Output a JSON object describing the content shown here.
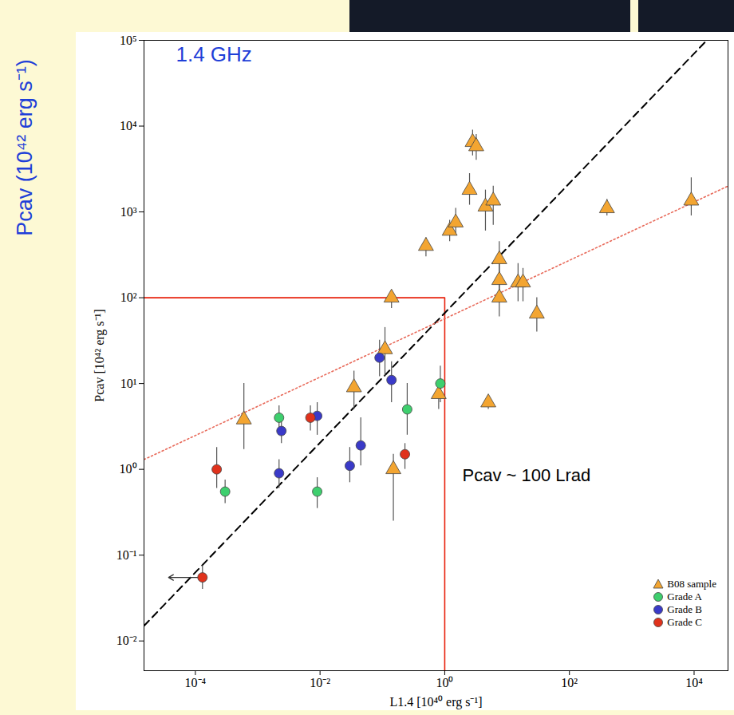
{
  "chart_data": {
    "type": "scatter",
    "log": true,
    "grid": false,
    "legend": "lower right",
    "xlabel": "L1.4 [10⁴⁰ erg s⁻¹]",
    "ylabel": "Pcav [10⁴² erg s⁻¹]",
    "annotations": [
      {
        "text": "1.4 GHz",
        "color": "#1f3fd8"
      },
      {
        "text": "Pcav ~ 100 Lrad",
        "color": "#000000"
      },
      {
        "text": "Pcav (10⁴² erg s⁻¹)",
        "color": "#1f3fd8"
      }
    ],
    "xlim": [
      1.5e-05,
      35000
    ],
    "ylim": [
      0.0045,
      100000
    ],
    "xticks": [
      {
        "value": 0.0001,
        "label": "10⁻⁴"
      },
      {
        "value": 0.01,
        "label": "10⁻²"
      },
      {
        "value": 1,
        "label": "10⁰"
      },
      {
        "value": 100,
        "label": "10²"
      },
      {
        "value": 10000,
        "label": "10⁴"
      }
    ],
    "yticks": [
      {
        "value": 0.01,
        "label": "10⁻²"
      },
      {
        "value": 0.1,
        "label": "10⁻¹"
      },
      {
        "value": 1,
        "label": "10⁰"
      },
      {
        "value": 10,
        "label": "10¹"
      },
      {
        "value": 100,
        "label": "10²"
      },
      {
        "value": 1000,
        "label": "10³"
      },
      {
        "value": 10000,
        "label": "10⁴"
      },
      {
        "value": 100000,
        "label": "10⁵"
      }
    ],
    "series": [
      {
        "type": "line",
        "color": "#e8200c",
        "line_style": "solid",
        "x": [
          1.5e-05,
          1,
          1
        ],
        "values": [
          100,
          100,
          0.0045
        ]
      },
      {
        "type": "line",
        "color": "#000000",
        "line_style": "dashed",
        "x": [
          1.5e-05,
          16000
        ],
        "values": [
          0.015,
          100000
        ]
      },
      {
        "type": "line",
        "color": "#e86a5a",
        "line_style": "dotted",
        "x": [
          1.5e-05,
          35000
        ],
        "values": [
          1.3,
          2000
        ]
      },
      {
        "type": "scatter",
        "name": "B08 sample",
        "color": "#f3a531",
        "marker": "triangle",
        "x": [
          0.0006,
          0.035,
          0.11,
          0.15,
          0.14,
          0.8,
          5,
          0.5,
          1.2,
          1.5,
          2.5,
          2.8,
          3.2,
          4.5,
          6,
          7.5,
          7.5,
          7.5,
          15,
          18,
          30,
          400,
          9000
        ],
        "values": [
          3.8,
          9,
          25,
          1,
          100,
          7.5,
          6,
          400,
          600,
          750,
          1800,
          6500,
          5800,
          1150,
          1350,
          280,
          160,
          100,
          150,
          150,
          65,
          1100,
          1350
        ],
        "y_low": [
          1.7,
          5,
          12,
          0.25,
          75,
          5,
          5,
          300,
          450,
          550,
          1200,
          4500,
          4000,
          600,
          700,
          180,
          110,
          60,
          90,
          90,
          40,
          900,
          900
        ],
        "y_high": [
          10,
          14,
          45,
          1.5,
          120,
          10,
          7,
          500,
          800,
          1100,
          2800,
          9000,
          8000,
          1800,
          2000,
          450,
          250,
          150,
          250,
          220,
          100,
          1400,
          2500
        ]
      },
      {
        "type": "scatter",
        "name": "Grade A",
        "color": "#3ecf6e",
        "marker": "circle",
        "x": [
          0.0003,
          0.0022,
          0.009,
          0.25,
          0.85
        ],
        "values": [
          0.55,
          4,
          0.55,
          5,
          10
        ],
        "y_low": [
          0.4,
          2.5,
          0.35,
          2.5,
          6
        ],
        "y_high": [
          0.75,
          5.5,
          0.8,
          10,
          16
        ]
      },
      {
        "type": "scatter",
        "name": "Grade B",
        "color": "#3a3ac8",
        "marker": "circle",
        "x": [
          0.0022,
          0.0024,
          0.009,
          0.03,
          0.045,
          0.09,
          0.14
        ],
        "values": [
          0.9,
          2.8,
          4.2,
          1.1,
          1.9,
          20,
          11
        ],
        "y_low": [
          0.6,
          2,
          2.5,
          0.7,
          1.1,
          12,
          6
        ],
        "y_high": [
          1.3,
          3.8,
          6,
          1.8,
          4,
          32,
          18
        ]
      },
      {
        "type": "scatter",
        "name": "Grade C",
        "color": "#e0321c",
        "marker": "circle",
        "x": [
          0.00013,
          0.00022,
          0.007,
          0.23
        ],
        "values": [
          0.055,
          1,
          4,
          1.5
        ],
        "y_low": [
          0.04,
          0.6,
          2.8,
          1
        ],
        "y_high": [
          0.075,
          1.8,
          5.5,
          2
        ],
        "x_upper_limit": [
          true,
          false,
          false,
          false
        ]
      }
    ]
  }
}
